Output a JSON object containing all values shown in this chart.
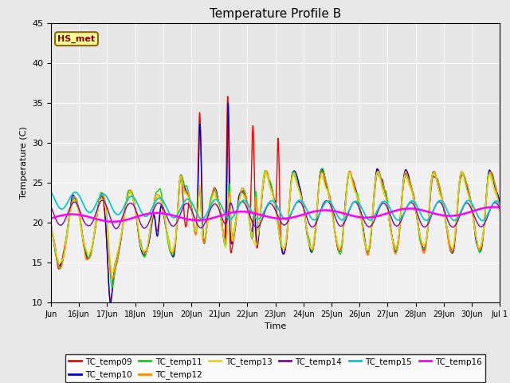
{
  "title": "Temperature Profile B",
  "xlabel": "Time",
  "ylabel": "Temperature (C)",
  "ylim": [
    10,
    45
  ],
  "annotation_text": "HS_met",
  "series_colors": {
    "TC_temp09": "#ff0000",
    "TC_temp10": "#0000cc",
    "TC_temp11": "#00dd00",
    "TC_temp12": "#ff8800",
    "TC_temp13": "#dddd00",
    "TC_temp14": "#8800aa",
    "TC_temp15": "#00cccc",
    "TC_temp16": "#ff00ff"
  },
  "tick_labels": [
    "Jun",
    "16Jun",
    "17Jun",
    "18Jun",
    "19Jun",
    "20Jun",
    "21Jun",
    "22Jun",
    "23Jun",
    "24Jun",
    "25Jun",
    "26Jun",
    "27Jun",
    "28Jun",
    "29Jun",
    "30Jun",
    "Jul 1"
  ],
  "tick_positions": [
    0,
    1,
    2,
    3,
    4,
    5,
    6,
    7,
    8,
    9,
    10,
    11,
    12,
    13,
    14,
    15,
    16
  ],
  "legend_entries": [
    "TC_temp09",
    "TC_temp10",
    "TC_temp11",
    "TC_temp12",
    "TC_temp13",
    "TC_temp14",
    "TC_temp15",
    "TC_temp16"
  ],
  "background_color": "#e8e8e8",
  "plot_bg_color": "#f0f0f0",
  "annotation_bg": "#ffff99",
  "annotation_border": "#886600",
  "annotation_text_color": "#880000",
  "figsize": [
    6.4,
    4.8
  ],
  "dpi": 100
}
